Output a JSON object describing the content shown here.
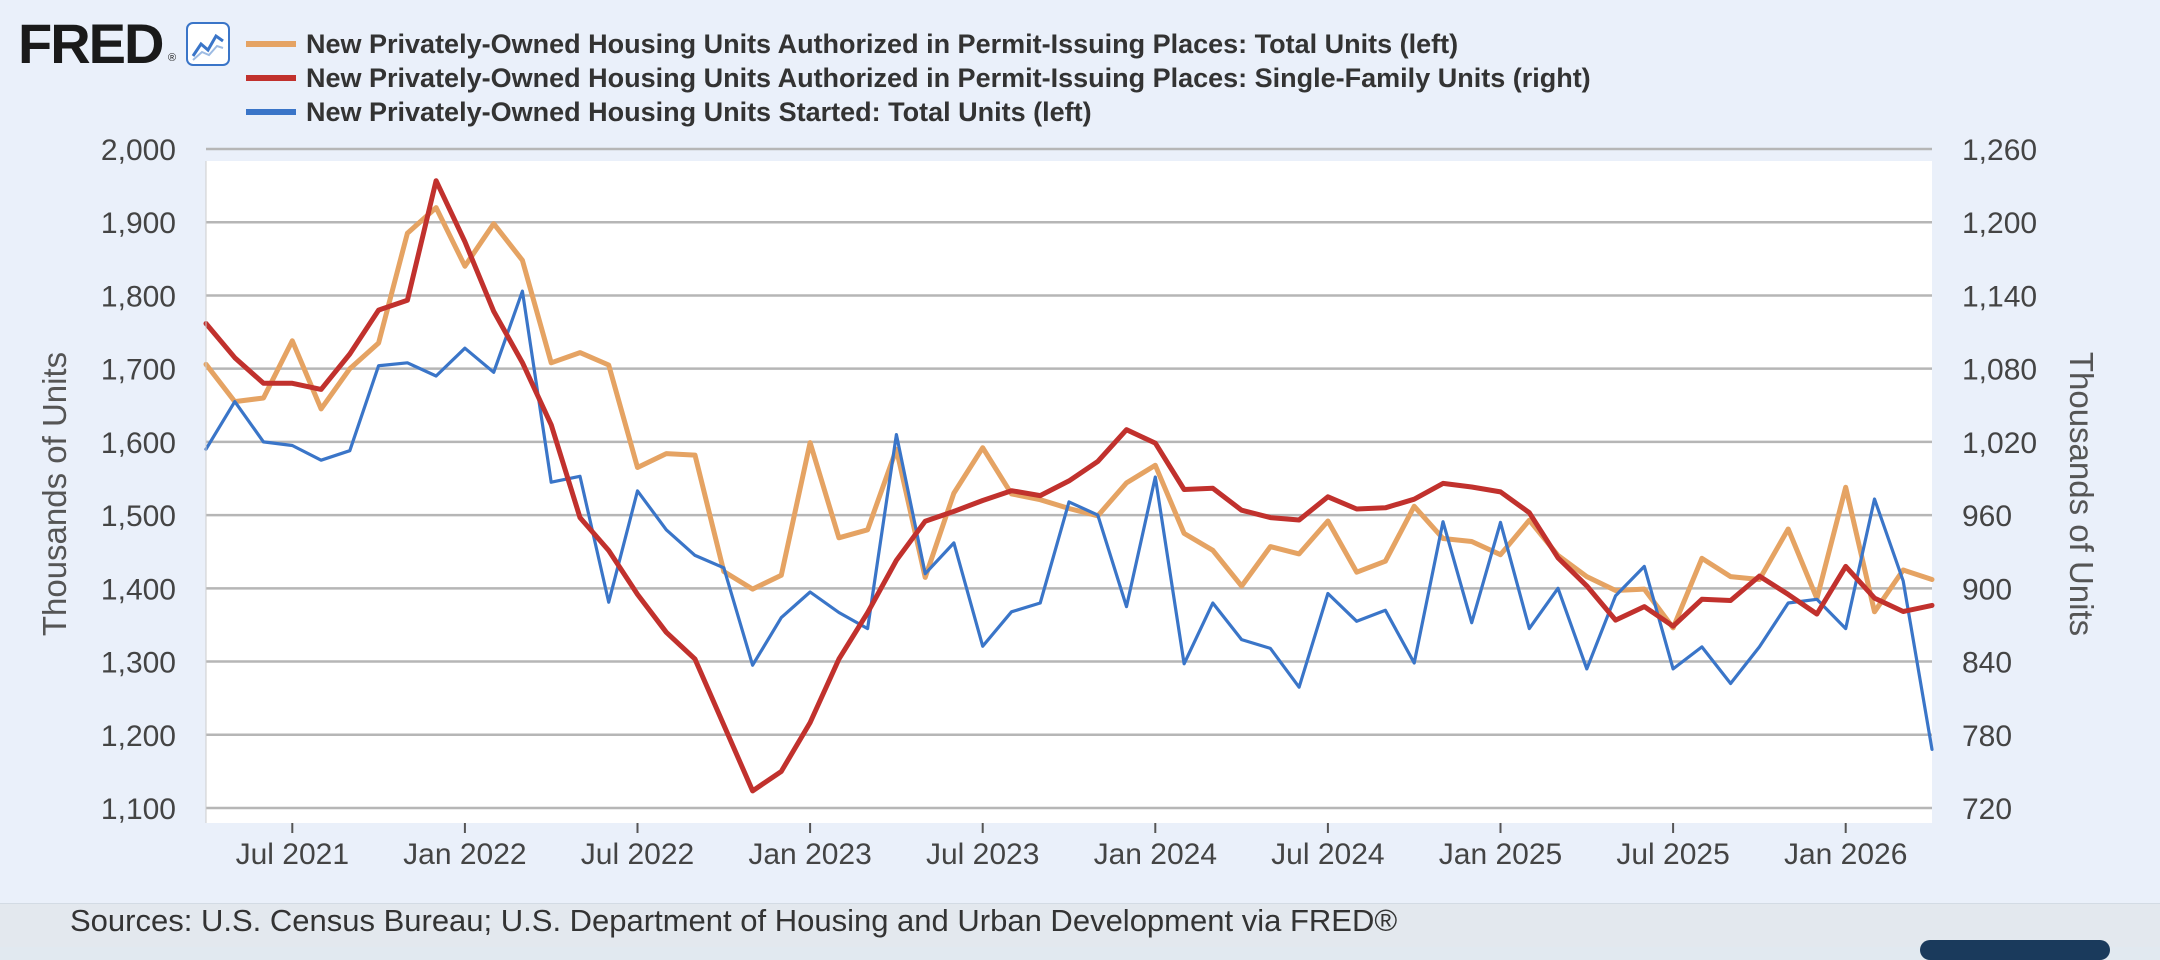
{
  "brand": {
    "logo_text": "FRED",
    "reg_mark": "®"
  },
  "icons": {
    "logo_graph": "line-graph-icon"
  },
  "sources": "Sources: U.S. Census Bureau; U.S. Department of Housing and Urban Development via FRED®",
  "colors": {
    "permits_total": "#e5a363",
    "permits_single": "#c1312d",
    "starts_total": "#3a75c8",
    "grid": "#b6b6b6",
    "panel": "#eaf0fa"
  },
  "chart_data": {
    "type": "line",
    "left_axis": {
      "label": "Thousands of Units",
      "range": [
        1100,
        2000
      ],
      "ticks": [
        "1,100",
        "1,200",
        "1,300",
        "1,400",
        "1,500",
        "1,600",
        "1,700",
        "1,800",
        "1,900",
        "2,000"
      ]
    },
    "right_axis": {
      "label": "Thousands of Units",
      "range": [
        720,
        1260
      ],
      "ticks": [
        "720",
        "780",
        "840",
        "900",
        "960",
        "1,020",
        "1,080",
        "1,140",
        "1,200",
        "1,260"
      ]
    },
    "x_range": [
      "2021-04",
      "2026-04"
    ],
    "x_ticks": [
      {
        "date": "2021-07",
        "label": "Jul 2021"
      },
      {
        "date": "2022-01",
        "label": "Jan 2022"
      },
      {
        "date": "2022-07",
        "label": "Jul 2022"
      },
      {
        "date": "2023-01",
        "label": "Jan 2023"
      },
      {
        "date": "2023-07",
        "label": "Jul 2023"
      },
      {
        "date": "2024-01",
        "label": "Jan 2024"
      },
      {
        "date": "2024-07",
        "label": "Jul 2024"
      },
      {
        "date": "2025-01",
        "label": "Jan 2025"
      },
      {
        "date": "2025-07",
        "label": "Jul 2025"
      },
      {
        "date": "2026-01",
        "label": "Jan 2026"
      }
    ],
    "grid": true,
    "legend_position": "top-left",
    "series": [
      {
        "name": "New Privately-Owned Housing Units Authorized in Permit-Issuing Places: Total Units (left)",
        "axis": "left",
        "color": "#e5a363",
        "start": "2021-04",
        "values": [
          1706,
          1655,
          1660,
          1738,
          1645,
          1700,
          1735,
          1885,
          1920,
          1840,
          1898,
          1848,
          1708,
          1722,
          1705,
          1565,
          1584,
          1582,
          1423,
          1399,
          1418,
          1599,
          1469,
          1480,
          1590,
          1415,
          1530,
          1592,
          1529,
          1521,
          1509,
          1499,
          1544,
          1568,
          1475,
          1452,
          1403,
          1457,
          1447,
          1492,
          1422,
          1437,
          1512,
          1468,
          1464,
          1446,
          1493,
          1445,
          1416,
          1397,
          1399,
          1346,
          1441,
          1416,
          1412,
          1481,
          1386,
          1538,
          1368,
          1425,
          1412
        ]
      },
      {
        "name": "New Privately-Owned Housing Units Authorized in Permit-Issuing Places: Single-Family Units (right)",
        "axis": "right",
        "color": "#c1312d",
        "start": "2021-04",
        "values": [
          1117,
          1089,
          1068,
          1068,
          1063,
          1092,
          1128,
          1136,
          1234,
          1184,
          1127,
          1085,
          1034,
          958,
          931,
          895,
          864,
          842,
          788,
          734,
          750,
          790,
          842,
          880,
          923,
          955,
          963,
          972,
          980,
          976,
          988,
          1004,
          1030,
          1019,
          981,
          982,
          964,
          958,
          956,
          975,
          965,
          966,
          973,
          986,
          983,
          979,
          962,
          925,
          902,
          874,
          885,
          869,
          891,
          890,
          910,
          895,
          879,
          918,
          892,
          881,
          886
        ]
      }
    ]
  },
  "starts_series": {
    "name": "New Privately-Owned Housing Units Started: Total Units (left)",
    "axis": "left",
    "color": "#3a75c8",
    "start": "2021-04",
    "values": [
      1590,
      1655,
      1600,
      1595,
      1575,
      1588,
      1704,
      1708,
      1690,
      1728,
      1695,
      1806,
      1545,
      1553,
      1381,
      1533,
      1480,
      1445,
      1428,
      1295,
      1360,
      1395,
      1367,
      1345,
      1610,
      1420,
      1462,
      1321,
      1368,
      1380,
      1518,
      1500,
      1375,
      1552,
      1297,
      1380,
      1330,
      1318,
      1265,
      1393,
      1355,
      1370,
      1298,
      1491,
      1353,
      1490,
      1345,
      1400,
      1290,
      1390,
      1430,
      1290,
      1320,
      1270,
      1320,
      1380,
      1385,
      1345,
      1522,
      1410,
      1180
    ]
  }
}
